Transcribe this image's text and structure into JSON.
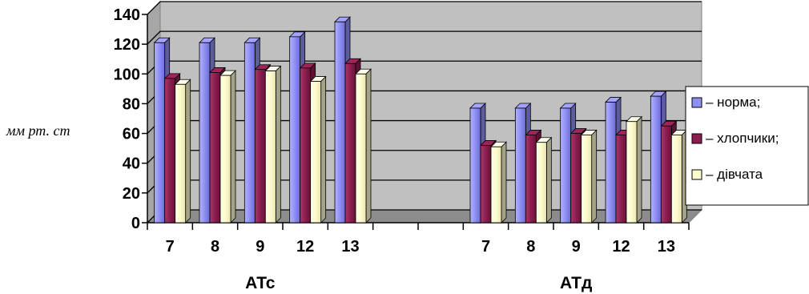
{
  "chart_data": {
    "type": "bar",
    "ylabel": "мм рт. ст",
    "ylim": [
      0,
      140
    ],
    "yticks": [
      0,
      20,
      40,
      60,
      80,
      100,
      120,
      140
    ],
    "grid": true,
    "legend_position": "right",
    "groups": [
      {
        "label": "АТс",
        "categories": [
          "7",
          "8",
          "9",
          "12",
          "13"
        ],
        "series": [
          {
            "name": "– норма;",
            "values": [
              121,
              121,
              121,
              125,
              135
            ]
          },
          {
            "name": "– хлопчики;",
            "values": [
              97,
              101,
              103,
              104,
              107
            ]
          },
          {
            "name": "– дівчата",
            "values": [
              93,
              99,
              102,
              95,
              100
            ]
          }
        ]
      },
      {
        "label": "АТд",
        "categories": [
          "7",
          "8",
          "9",
          "12",
          "13"
        ],
        "series": [
          {
            "name": "– норма;",
            "values": [
              77,
              77,
              77,
              81,
              85
            ]
          },
          {
            "name": "– хлопчики;",
            "values": [
              52,
              59,
              60,
              59,
              65
            ]
          },
          {
            "name": "– дівчата",
            "values": [
              51,
              54,
              59,
              68,
              59
            ]
          }
        ]
      }
    ],
    "colors": [
      "#8f8ff2",
      "#8b1e4f",
      "#fdfbcf"
    ],
    "plot_background": "#c0c0c0"
  }
}
